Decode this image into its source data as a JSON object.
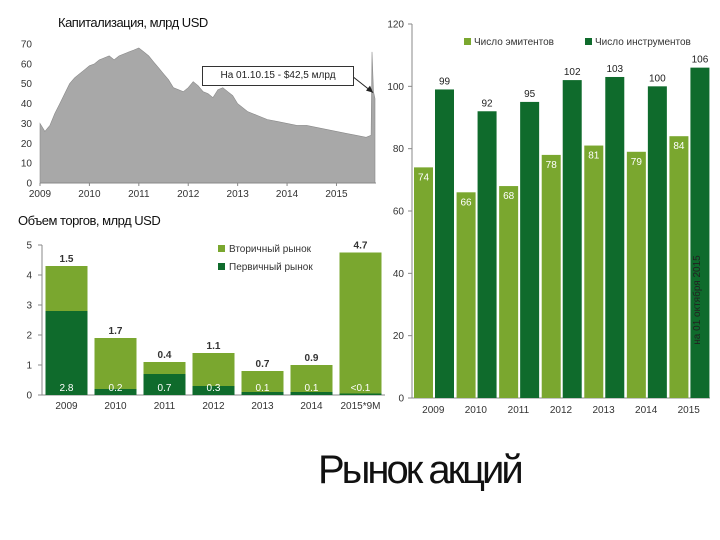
{
  "slide_title": "Рынок акций",
  "chart_data": [
    {
      "type": "area",
      "title": "Капитализация, млрд USD",
      "annotation": "На 01.10.15 - $42,5 млрд",
      "ylim": [
        0,
        70
      ],
      "y_ticks": [
        0,
        10,
        20,
        30,
        40,
        50,
        60,
        70
      ],
      "x_ticks": [
        "2009",
        "2010",
        "2011",
        "2012",
        "2013",
        "2014",
        "2015"
      ],
      "x": [
        2009.0,
        2009.1,
        2009.2,
        2009.3,
        2009.4,
        2009.5,
        2009.6,
        2009.7,
        2009.8,
        2009.9,
        2010.0,
        2010.1,
        2010.2,
        2010.3,
        2010.4,
        2010.5,
        2010.6,
        2010.7,
        2010.8,
        2010.9,
        2011.0,
        2011.1,
        2011.2,
        2011.3,
        2011.4,
        2011.5,
        2011.6,
        2011.7,
        2011.8,
        2011.9,
        2012.0,
        2012.1,
        2012.2,
        2012.3,
        2012.4,
        2012.5,
        2012.6,
        2012.7,
        2012.8,
        2012.9,
        2013.0,
        2013.2,
        2013.4,
        2013.6,
        2013.8,
        2014.0,
        2014.2,
        2014.4,
        2014.6,
        2014.8,
        2015.0,
        2015.2,
        2015.4,
        2015.6,
        2015.7,
        2015.72,
        2015.75,
        2015.78
      ],
      "values": [
        30,
        26,
        29,
        35,
        40,
        45,
        50,
        53,
        55,
        57,
        59,
        60,
        62,
        63,
        64,
        62,
        64,
        65,
        66,
        67,
        68,
        66,
        64,
        61,
        58,
        55,
        52,
        48,
        47,
        46,
        48,
        51,
        49,
        46,
        45,
        43,
        47,
        48,
        46,
        44,
        40,
        36,
        34,
        32,
        31,
        30,
        29,
        29,
        28,
        27,
        26,
        25,
        24,
        23,
        24,
        66,
        46,
        42.5
      ],
      "color": "#a8a8a8"
    },
    {
      "type": "bar",
      "stacked": true,
      "title": "Объем торгов, млрд USD",
      "categories": [
        "2009",
        "2010",
        "2011",
        "2012",
        "2013",
        "2014",
        "2015*9M"
      ],
      "series": [
        {
          "name": "Первичный рынок",
          "color": "#0f6b2c",
          "values": [
            2.8,
            0.2,
            0.7,
            0.3,
            0.1,
            0.1,
            0.05
          ],
          "labels": [
            "2.8",
            "0.2",
            "0.7",
            "0.3",
            "0.1",
            "0.1",
            "<0.1"
          ]
        },
        {
          "name": "Вторичный рынок",
          "color": "#7aa72f",
          "values": [
            1.5,
            1.7,
            0.4,
            1.1,
            0.7,
            0.9,
            4.7
          ],
          "labels": [
            "1.5",
            "1.7",
            "0.4",
            "1.1",
            "0.7",
            "0.9",
            "4.7"
          ]
        }
      ],
      "ylim": [
        0,
        5
      ],
      "y_ticks": [
        0,
        1,
        2,
        3,
        4,
        5
      ]
    },
    {
      "type": "bar",
      "categories": [
        "2009",
        "2010",
        "2011",
        "2012",
        "2013",
        "2014",
        "2015"
      ],
      "series": [
        {
          "name": "Число эмитентов",
          "color": "#7aa72f",
          "values": [
            74,
            66,
            68,
            78,
            81,
            79,
            84
          ]
        },
        {
          "name": "Число инструментов",
          "color": "#0f6b2c",
          "values": [
            99,
            92,
            95,
            102,
            103,
            100,
            106
          ]
        }
      ],
      "ylim": [
        0,
        120
      ],
      "y_ticks": [
        0,
        20,
        40,
        60,
        80,
        100,
        120
      ],
      "side_label": "на 01 октября 2015"
    }
  ]
}
